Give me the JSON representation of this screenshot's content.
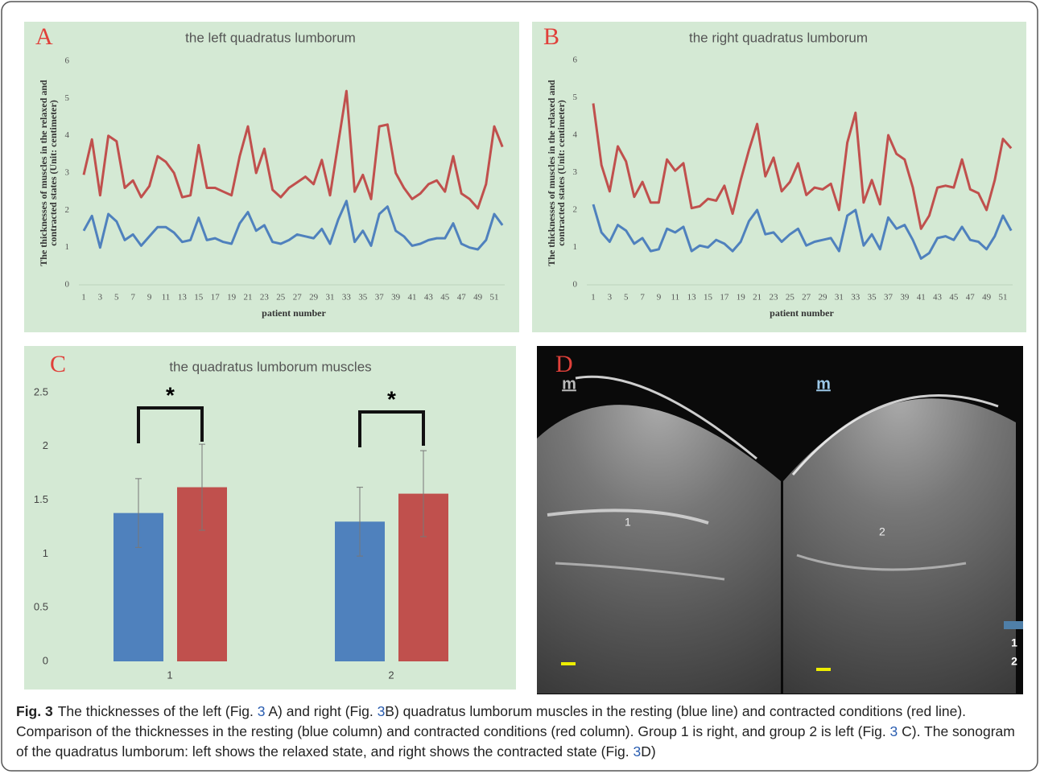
{
  "chart_data": [
    {
      "type": "line",
      "panel_label": "A",
      "title": "the left quadratus lumborum",
      "y_label": [
        "The thicknesses of muscles in the relaxed and",
        "contracted states (Unit:  centimeter)"
      ],
      "x_label": "patient number",
      "categories": [
        1,
        null,
        3,
        null,
        5,
        null,
        7,
        null,
        9,
        null,
        11,
        null,
        13,
        null,
        15,
        null,
        17,
        null,
        19,
        null,
        21,
        null,
        23,
        null,
        25,
        null,
        27,
        null,
        29,
        null,
        31,
        null,
        33,
        null,
        35,
        null,
        37,
        null,
        39,
        null,
        41,
        null,
        43,
        null,
        45,
        null,
        47,
        null,
        49,
        null,
        51,
        null
      ],
      "series": [
        {
          "color": "#c0504d",
          "values": [
            2.95,
            3.9,
            2.4,
            4.0,
            3.85,
            2.6,
            2.8,
            2.35,
            2.65,
            3.45,
            3.3,
            3.0,
            2.35,
            2.4,
            3.75,
            2.6,
            2.6,
            2.5,
            2.4,
            3.45,
            4.25,
            3.0,
            3.65,
            2.55,
            2.35,
            2.6,
            2.75,
            2.9,
            2.7,
            3.35,
            2.4,
            3.8,
            5.2,
            2.5,
            2.95,
            2.3,
            4.25,
            4.3,
            3.0,
            2.6,
            2.3,
            2.45,
            2.7,
            2.8,
            2.5,
            3.45,
            2.45,
            2.3,
            2.05,
            2.7,
            4.25,
            3.7
          ]
        },
        {
          "color": "#4f81bd",
          "values": [
            1.45,
            1.85,
            1.0,
            1.9,
            1.7,
            1.2,
            1.35,
            1.05,
            1.3,
            1.55,
            1.55,
            1.4,
            1.15,
            1.2,
            1.8,
            1.2,
            1.25,
            1.15,
            1.1,
            1.65,
            1.95,
            1.45,
            1.6,
            1.15,
            1.1,
            1.2,
            1.35,
            1.3,
            1.25,
            1.5,
            1.1,
            1.75,
            2.25,
            1.15,
            1.45,
            1.05,
            1.9,
            2.1,
            1.45,
            1.3,
            1.05,
            1.1,
            1.2,
            1.25,
            1.25,
            1.65,
            1.1,
            1.0,
            0.95,
            1.2,
            1.9,
            1.6
          ]
        }
      ],
      "ylim": [
        0,
        6
      ],
      "yticks": [
        0,
        1,
        2,
        3,
        4,
        5,
        6
      ]
    },
    {
      "type": "line",
      "panel_label": "B",
      "title": "the right quadratus lumborum",
      "y_label": [
        "The thicknesses of muscles in the relaxed and",
        "contracted states (Unit:  centimeter)"
      ],
      "x_label": "patient number",
      "categories": [
        1,
        null,
        3,
        null,
        5,
        null,
        7,
        null,
        9,
        null,
        11,
        null,
        13,
        null,
        15,
        null,
        17,
        null,
        19,
        null,
        21,
        null,
        23,
        null,
        25,
        null,
        27,
        null,
        29,
        null,
        31,
        null,
        33,
        null,
        35,
        null,
        37,
        null,
        39,
        null,
        41,
        null,
        43,
        null,
        45,
        null,
        47,
        null,
        49,
        null,
        51,
        null
      ],
      "series": [
        {
          "color": "#c0504d",
          "values": [
            4.85,
            3.2,
            2.5,
            3.7,
            3.3,
            2.35,
            2.75,
            2.2,
            2.2,
            3.35,
            3.05,
            3.25,
            2.05,
            2.1,
            2.3,
            2.25,
            2.65,
            1.9,
            2.8,
            3.6,
            4.3,
            2.9,
            3.4,
            2.5,
            2.75,
            3.25,
            2.4,
            2.6,
            2.55,
            2.7,
            2.0,
            3.8,
            4.6,
            2.2,
            2.8,
            2.15,
            4.0,
            3.5,
            3.35,
            2.6,
            1.5,
            1.85,
            2.6,
            2.65,
            2.6,
            3.35,
            2.55,
            2.45,
            2.0,
            2.8,
            3.9,
            3.65
          ]
        },
        {
          "color": "#4f81bd",
          "values": [
            2.15,
            1.4,
            1.15,
            1.6,
            1.45,
            1.1,
            1.25,
            0.9,
            0.95,
            1.5,
            1.4,
            1.55,
            0.9,
            1.05,
            1.0,
            1.2,
            1.1,
            0.9,
            1.15,
            1.7,
            2.0,
            1.35,
            1.4,
            1.15,
            1.35,
            1.5,
            1.05,
            1.15,
            1.2,
            1.25,
            0.9,
            1.85,
            2.0,
            1.05,
            1.35,
            0.95,
            1.8,
            1.5,
            1.6,
            1.2,
            0.7,
            0.85,
            1.25,
            1.3,
            1.2,
            1.55,
            1.2,
            1.15,
            0.95,
            1.3,
            1.85,
            1.45
          ]
        }
      ],
      "ylim": [
        0,
        6
      ],
      "yticks": [
        0,
        1,
        2,
        3,
        4,
        5,
        6
      ]
    },
    {
      "type": "bar",
      "panel_label": "C",
      "title": "the quadratus lumborum muscles",
      "categories": [
        "1",
        "2"
      ],
      "series": [
        {
          "color": "#4f81bd",
          "values": [
            1.38,
            1.3
          ],
          "errors": [
            0.32,
            0.32
          ]
        },
        {
          "color": "#c0504d",
          "values": [
            1.62,
            1.56
          ],
          "errors": [
            0.4,
            0.4
          ]
        }
      ],
      "annotations": [
        "*",
        "*"
      ],
      "ylim": [
        0,
        2.5
      ],
      "yticks": [
        0,
        0.5,
        1,
        1.5,
        2,
        2.5
      ]
    }
  ],
  "panel_d": {
    "label": "D",
    "probe_marks": [
      "m",
      "m"
    ],
    "points": [
      "1",
      "2"
    ],
    "legend": [
      "1",
      "2"
    ]
  },
  "caption": {
    "label": "Fig. 3",
    "parts": [
      "The thicknesses of the left (Fig. ",
      "3",
      " A) and right (Fig. ",
      "3",
      "B) quadratus lumborum muscles in the resting (blue line) and contracted conditions (red line). Comparison of the thicknesses in the resting (blue column) and contracted conditions (red column). Group 1 is right, and group 2 is left (Fig. ",
      "3",
      " C). The sonogram of the quadratus lumborum: left shows the relaxed state, and right shows the contracted state (Fig. ",
      "3",
      "D)"
    ]
  }
}
